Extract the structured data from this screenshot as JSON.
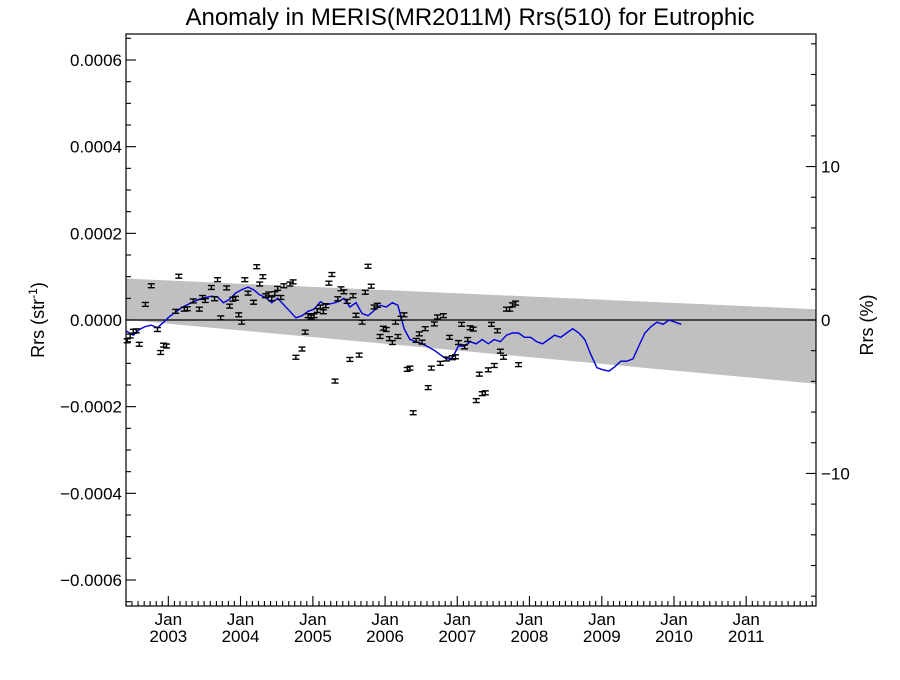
{
  "chart_data": {
    "type": "line",
    "title": "Anomaly in MERIS(MR2011M) Rrs(510) for Eutrophic",
    "ylabel": "Rrs (str",
    "ylabel_superscript": "-1",
    "ylabel_close": ")",
    "y2label": "Rrs (%)",
    "ylim": [
      -0.00066,
      0.00066
    ],
    "y2lim": [
      -18.64,
      18.64
    ],
    "xlim": [
      "2002-06-01",
      "2011-12-20"
    ],
    "grid": false,
    "legend": "none",
    "y_ticks": [
      {
        "value": 0.0006,
        "label": "0.0006"
      },
      {
        "value": 0.0004,
        "label": "0.0004"
      },
      {
        "value": 0.0002,
        "label": "0.0002"
      },
      {
        "value": 0.0,
        "label": "0.0000"
      },
      {
        "value": -0.0002,
        "label": "−0.0002"
      },
      {
        "value": -0.0004,
        "label": "−0.0004"
      },
      {
        "value": -0.0006,
        "label": "−0.0006"
      }
    ],
    "y_minor_step": 5e-05,
    "y2_ticks": [
      {
        "value": 10,
        "label": "10"
      },
      {
        "value": 0,
        "label": "0"
      },
      {
        "value": -10,
        "label": "−10"
      }
    ],
    "y2_minor_step": 2,
    "x_ticks": [
      {
        "date": "2003-01-01",
        "month": "Jan",
        "year": "2003"
      },
      {
        "date": "2004-01-01",
        "month": "Jan",
        "year": "2004"
      },
      {
        "date": "2005-01-01",
        "month": "Jan",
        "year": "2005"
      },
      {
        "date": "2006-01-01",
        "month": "Jan",
        "year": "2006"
      },
      {
        "date": "2007-01-01",
        "month": "Jan",
        "year": "2007"
      },
      {
        "date": "2008-01-01",
        "month": "Jan",
        "year": "2008"
      },
      {
        "date": "2009-01-01",
        "month": "Jan",
        "year": "2009"
      },
      {
        "date": "2010-01-01",
        "month": "Jan",
        "year": "2010"
      },
      {
        "date": "2011-01-01",
        "month": "Jan",
        "year": "2011"
      }
    ],
    "uncertainty_band": {
      "color": "#c0c0c0",
      "upper": [
        [
          "2002-06-01",
          9.55e-05
        ],
        [
          "2011-12-20",
          2.5e-05
        ]
      ],
      "lower": [
        [
          "2002-06-01",
          5e-07
        ],
        [
          "2011-12-20",
          -0.000147
        ]
      ]
    },
    "zero_line_color": "#000000",
    "series": [
      {
        "kind": "monthly_anomaly",
        "color": "#000000",
        "error_half_width": 4.5e-06,
        "points": [
          [
            "2002-06-07",
            -4.8e-05
          ],
          [
            "2002-06-22",
            -3.7e-05
          ],
          [
            "2002-07-08",
            -2.6e-05
          ],
          [
            "2002-07-23",
            -2.5e-05
          ],
          [
            "2002-08-07",
            -5.6e-05
          ],
          [
            "2002-09-07",
            3.6e-05
          ],
          [
            "2002-10-07",
            7.9e-05
          ],
          [
            "2002-11-07",
            -2.2e-05
          ],
          [
            "2002-11-23",
            -7.5e-05
          ],
          [
            "2002-12-08",
            -5.8e-05
          ],
          [
            "2002-12-23",
            -6e-05
          ],
          [
            "2003-02-07",
            2e-05
          ],
          [
            "2003-02-23",
            0.000101
          ],
          [
            "2003-03-23",
            2.5e-05
          ],
          [
            "2003-04-07",
            2.6e-05
          ],
          [
            "2003-05-07",
            4.4e-05
          ],
          [
            "2003-06-07",
            2.5e-05
          ],
          [
            "2003-06-23",
            5.2e-05
          ],
          [
            "2003-07-07",
            4.5e-05
          ],
          [
            "2003-08-07",
            7.5e-05
          ],
          [
            "2003-08-23",
            4.9e-05
          ],
          [
            "2003-09-07",
            9.3e-05
          ],
          [
            "2003-09-23",
            5e-06
          ],
          [
            "2003-10-23",
            7.4e-05
          ],
          [
            "2003-11-07",
            3.2e-05
          ],
          [
            "2003-11-23",
            4.8e-05
          ],
          [
            "2003-12-07",
            5e-05
          ],
          [
            "2003-12-23",
            1.2e-05
          ],
          [
            "2004-01-07",
            -5e-06
          ],
          [
            "2004-01-23",
            9.3e-05
          ],
          [
            "2004-02-08",
            6.2e-05
          ],
          [
            "2004-03-07",
            4.1e-05
          ],
          [
            "2004-03-23",
            0.000123
          ],
          [
            "2004-04-07",
            8.3e-05
          ],
          [
            "2004-04-23",
            0.0001
          ],
          [
            "2004-05-07",
            5.6e-05
          ],
          [
            "2004-05-23",
            6e-05
          ],
          [
            "2004-06-07",
            4.9e-05
          ],
          [
            "2004-06-23",
            6.1e-05
          ],
          [
            "2004-07-07",
            7.3e-05
          ],
          [
            "2004-07-23",
            5.2e-05
          ],
          [
            "2004-08-07",
            7.9e-05
          ],
          [
            "2004-09-07",
            8.3e-05
          ],
          [
            "2004-09-23",
            8.8e-05
          ],
          [
            "2004-10-07",
            -8.6e-05
          ],
          [
            "2004-11-07",
            -6.7e-05
          ],
          [
            "2004-11-23",
            -2.8e-05
          ],
          [
            "2004-12-08",
            1e-05
          ],
          [
            "2004-12-23",
            7e-06
          ],
          [
            "2005-01-07",
            1e-05
          ],
          [
            "2005-01-23",
            2.2e-05
          ],
          [
            "2005-02-08",
            3e-05
          ],
          [
            "2005-02-23",
            1.9e-05
          ],
          [
            "2005-03-07",
            3.3e-05
          ],
          [
            "2005-03-23",
            8.5e-05
          ],
          [
            "2005-04-07",
            0.000105
          ],
          [
            "2005-04-23",
            -0.000141
          ],
          [
            "2005-05-07",
            4.9e-05
          ],
          [
            "2005-05-23",
            7.2e-05
          ],
          [
            "2005-06-07",
            6.5e-05
          ],
          [
            "2005-06-23",
            4.3e-05
          ],
          [
            "2005-07-07",
            -9.1e-05
          ],
          [
            "2005-07-23",
            5.6e-05
          ],
          [
            "2005-08-07",
            1.1e-05
          ],
          [
            "2005-08-23",
            -8.1e-05
          ],
          [
            "2005-09-07",
            -5e-06
          ],
          [
            "2005-09-23",
            6.4e-05
          ],
          [
            "2005-10-07",
            0.000124
          ],
          [
            "2005-10-23",
            7.8e-05
          ],
          [
            "2005-11-07",
            3e-05
          ],
          [
            "2005-11-23",
            3.4e-05
          ],
          [
            "2005-12-07",
            -3.8e-05
          ],
          [
            "2005-12-23",
            -1.9e-05
          ],
          [
            "2006-01-07",
            -2.2e-05
          ],
          [
            "2006-01-23",
            -4.3e-05
          ],
          [
            "2006-02-07",
            -5.2e-05
          ],
          [
            "2006-02-23",
            -5e-06
          ],
          [
            "2006-03-07",
            -3.8e-05
          ],
          [
            "2006-03-23",
            4e-06
          ],
          [
            "2006-04-07",
            1.2e-05
          ],
          [
            "2006-04-23",
            -0.000114
          ],
          [
            "2006-05-07",
            -0.000111
          ],
          [
            "2006-05-23",
            -0.000214
          ],
          [
            "2006-06-07",
            -4.7e-05
          ],
          [
            "2006-06-23",
            -3.2e-05
          ],
          [
            "2006-07-07",
            -5.1e-05
          ],
          [
            "2006-07-23",
            -2e-05
          ],
          [
            "2006-08-07",
            -0.000156
          ],
          [
            "2006-08-23",
            -0.000111
          ],
          [
            "2006-09-07",
            -9e-06
          ],
          [
            "2006-09-23",
            7e-06
          ],
          [
            "2006-10-07",
            -0.0001
          ],
          [
            "2006-10-23",
            1e-05
          ],
          [
            "2006-11-07",
            -9e-05
          ],
          [
            "2006-11-23",
            -4e-05
          ],
          [
            "2006-12-07",
            -8.7e-05
          ],
          [
            "2006-12-23",
            -8.5e-05
          ],
          [
            "2007-01-07",
            -5.2e-05
          ],
          [
            "2007-01-23",
            -1e-05
          ],
          [
            "2007-02-07",
            -6.2e-05
          ],
          [
            "2007-02-23",
            -4.5e-05
          ],
          [
            "2007-03-07",
            -1.8e-05
          ],
          [
            "2007-03-23",
            -2.1e-05
          ],
          [
            "2007-04-07",
            -0.000186
          ],
          [
            "2007-04-23",
            -0.000125
          ],
          [
            "2007-05-07",
            -0.00017
          ],
          [
            "2007-05-23",
            -0.000168
          ],
          [
            "2007-06-07",
            -0.000115
          ],
          [
            "2007-06-23",
            -1e-05
          ],
          [
            "2007-07-07",
            -0.000105
          ],
          [
            "2007-07-23",
            -2.5e-05
          ],
          [
            "2007-08-07",
            -7.2e-05
          ],
          [
            "2007-08-23",
            -8.6e-05
          ],
          [
            "2007-09-07",
            2.5e-05
          ],
          [
            "2007-09-23",
            2.5e-05
          ],
          [
            "2007-10-07",
            3.5e-05
          ],
          [
            "2007-10-23",
            3.9e-05
          ],
          [
            "2007-11-07",
            -0.000103
          ]
        ]
      },
      {
        "kind": "smoothed_anomaly",
        "color": "#0000dd",
        "points": [
          [
            "2002-06-01",
            -2.5e-05
          ],
          [
            "2002-07-08",
            -3.5e-05
          ],
          [
            "2002-08-07",
            -2.2e-05
          ],
          [
            "2002-09-07",
            -1.5e-05
          ],
          [
            "2002-10-07",
            -1.2e-05
          ],
          [
            "2002-11-07",
            -1.8e-05
          ],
          [
            "2002-12-08",
            -5e-06
          ],
          [
            "2003-01-07",
            8e-06
          ],
          [
            "2003-02-07",
            1.8e-05
          ],
          [
            "2003-03-07",
            2.8e-05
          ],
          [
            "2003-04-07",
            3.5e-05
          ],
          [
            "2003-05-07",
            4.2e-05
          ],
          [
            "2003-06-07",
            4.8e-05
          ],
          [
            "2003-07-07",
            5.2e-05
          ],
          [
            "2003-08-07",
            5.5e-05
          ],
          [
            "2003-09-07",
            5.3e-05
          ],
          [
            "2003-10-07",
            4e-05
          ],
          [
            "2003-11-07",
            4.8e-05
          ],
          [
            "2003-12-07",
            6.2e-05
          ],
          [
            "2004-01-07",
            7e-05
          ],
          [
            "2004-02-08",
            7.6e-05
          ],
          [
            "2004-03-07",
            7e-05
          ],
          [
            "2004-04-07",
            5.8e-05
          ],
          [
            "2004-05-07",
            5.2e-05
          ],
          [
            "2004-06-07",
            4e-05
          ],
          [
            "2004-07-07",
            5e-05
          ],
          [
            "2004-08-07",
            3.5e-05
          ],
          [
            "2004-09-07",
            2e-05
          ],
          [
            "2004-10-07",
            5e-06
          ],
          [
            "2004-11-07",
            1e-05
          ],
          [
            "2004-12-08",
            2e-05
          ],
          [
            "2005-01-07",
            2.5e-05
          ],
          [
            "2005-02-08",
            4.2e-05
          ],
          [
            "2005-03-07",
            3.5e-05
          ],
          [
            "2005-04-07",
            3.8e-05
          ],
          [
            "2005-05-07",
            4.2e-05
          ],
          [
            "2005-06-07",
            5e-05
          ],
          [
            "2005-07-07",
            3e-05
          ],
          [
            "2005-08-07",
            4e-05
          ],
          [
            "2005-09-07",
            1.5e-05
          ],
          [
            "2005-10-07",
            1e-05
          ],
          [
            "2005-11-07",
            2.2e-05
          ],
          [
            "2005-12-07",
            3.4e-05
          ],
          [
            "2006-01-07",
            3e-05
          ],
          [
            "2006-02-07",
            4e-05
          ],
          [
            "2006-03-07",
            3.4e-05
          ],
          [
            "2006-04-07",
            -2e-05
          ],
          [
            "2006-05-07",
            -4.5e-05
          ],
          [
            "2006-06-07",
            -5e-05
          ],
          [
            "2006-07-07",
            -5.5e-05
          ],
          [
            "2006-08-07",
            -6.2e-05
          ],
          [
            "2006-09-07",
            -7e-05
          ],
          [
            "2006-10-07",
            -8e-05
          ],
          [
            "2006-11-07",
            -9e-05
          ],
          [
            "2006-12-07",
            -8.8e-05
          ],
          [
            "2007-01-07",
            -6e-05
          ],
          [
            "2007-02-07",
            -6e-05
          ],
          [
            "2007-03-07",
            -5e-05
          ],
          [
            "2007-04-07",
            -5.5e-05
          ],
          [
            "2007-05-07",
            -4.5e-05
          ],
          [
            "2007-06-07",
            -5.5e-05
          ],
          [
            "2007-07-07",
            -4.5e-05
          ],
          [
            "2007-08-07",
            -5e-05
          ],
          [
            "2007-09-07",
            -3.5e-05
          ],
          [
            "2007-10-07",
            -3e-05
          ],
          [
            "2007-11-07",
            -3e-05
          ],
          [
            "2007-12-07",
            -4e-05
          ],
          [
            "2008-01-07",
            -4e-05
          ],
          [
            "2008-02-07",
            -5e-05
          ],
          [
            "2008-03-07",
            -5.5e-05
          ],
          [
            "2008-04-07",
            -4.5e-05
          ],
          [
            "2008-05-07",
            -3.5e-05
          ],
          [
            "2008-06-07",
            -4e-05
          ],
          [
            "2008-07-07",
            -3e-05
          ],
          [
            "2008-08-07",
            -2e-05
          ],
          [
            "2008-09-07",
            -3e-05
          ],
          [
            "2008-10-07",
            -4.5e-05
          ],
          [
            "2008-11-07",
            -8e-05
          ],
          [
            "2008-12-07",
            -0.00011
          ],
          [
            "2009-01-07",
            -0.000115
          ],
          [
            "2009-02-07",
            -0.000118
          ],
          [
            "2009-03-07",
            -0.000108
          ],
          [
            "2009-04-07",
            -9.5e-05
          ],
          [
            "2009-05-07",
            -9.5e-05
          ],
          [
            "2009-06-07",
            -9e-05
          ],
          [
            "2009-07-07",
            -6e-05
          ],
          [
            "2009-08-07",
            -3e-05
          ],
          [
            "2009-09-07",
            -1.5e-05
          ],
          [
            "2009-10-07",
            -5e-06
          ],
          [
            "2009-11-07",
            -1e-05
          ],
          [
            "2009-12-07",
            0.0
          ],
          [
            "2010-01-07",
            -5e-06
          ],
          [
            "2010-02-07",
            -1e-05
          ]
        ]
      }
    ]
  }
}
